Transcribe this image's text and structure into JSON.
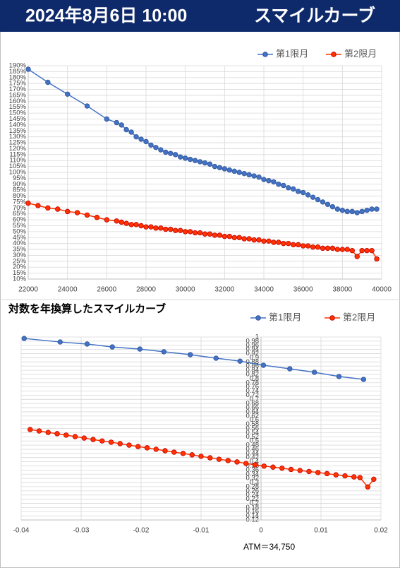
{
  "header": {
    "date": "2024年8月6日 10:00",
    "title": "スマイルカーブ"
  },
  "chart_data": [
    {
      "type": "line",
      "xlim": [
        22000,
        40000
      ],
      "xticks": [
        22000,
        24000,
        26000,
        28000,
        30000,
        32000,
        34000,
        36000,
        38000,
        40000
      ],
      "ylim": [
        10,
        190
      ],
      "yticks": [
        {
          "value": 10,
          "label": "10%"
        },
        {
          "value": 15,
          "label": "15%"
        },
        {
          "value": 20,
          "label": "20%"
        },
        {
          "value": 25,
          "label": "25%"
        },
        {
          "value": 30,
          "label": "30%"
        },
        {
          "value": 35,
          "label": "35%"
        },
        {
          "value": 40,
          "label": "40%"
        },
        {
          "value": 45,
          "label": "45%"
        },
        {
          "value": 50,
          "label": "50%"
        },
        {
          "value": 55,
          "label": "55%"
        },
        {
          "value": 60,
          "label": "60%"
        },
        {
          "value": 65,
          "label": "65%"
        },
        {
          "value": 70,
          "label": "70%"
        },
        {
          "value": 75,
          "label": "75%"
        },
        {
          "value": 80,
          "label": "80%"
        },
        {
          "value": 85,
          "label": "85%"
        },
        {
          "value": 90,
          "label": "90%"
        },
        {
          "value": 95,
          "label": "95%"
        },
        {
          "value": 100,
          "label": "100%"
        },
        {
          "value": 105,
          "label": "105%"
        },
        {
          "value": 110,
          "label": "110%"
        },
        {
          "value": 115,
          "label": "115%"
        },
        {
          "value": 120,
          "label": "120%"
        },
        {
          "value": 125,
          "label": "125%"
        },
        {
          "value": 130,
          "label": "130%"
        },
        {
          "value": 135,
          "label": "135%"
        },
        {
          "value": 140,
          "label": "140%"
        },
        {
          "value": 145,
          "label": "145%"
        },
        {
          "value": 150,
          "label": "150%"
        },
        {
          "value": 155,
          "label": "155%"
        },
        {
          "value": 160,
          "label": "160%"
        },
        {
          "value": 165,
          "label": "165%"
        },
        {
          "value": 170,
          "label": "170%"
        },
        {
          "value": 175,
          "label": "175%"
        },
        {
          "value": 180,
          "label": "180%"
        },
        {
          "value": 185,
          "label": "185%"
        },
        {
          "value": 190,
          "label": "190%"
        }
      ],
      "grid": true,
      "legend": "top-right",
      "series": [
        {
          "name": "第1限月",
          "color": "#4472c4",
          "marker_edge_color": "#2f5597",
          "x": [
            22000,
            23000,
            24000,
            25000,
            26000,
            26500,
            26750,
            27000,
            27250,
            27500,
            27750,
            28000,
            28250,
            28500,
            28750,
            29000,
            29250,
            29500,
            29750,
            30000,
            30250,
            30500,
            30750,
            31000,
            31250,
            31500,
            31750,
            32000,
            32250,
            32500,
            32750,
            33000,
            33250,
            33500,
            33750,
            34000,
            34250,
            34500,
            34750,
            35000,
            35250,
            35500,
            35750,
            36000,
            36250,
            36500,
            36750,
            37000,
            37250,
            37500,
            37750,
            38000,
            38250,
            38500,
            38750,
            39000,
            39250,
            39500,
            39750
          ],
          "values": [
            187,
            176,
            166,
            156,
            145,
            142,
            140,
            136,
            134,
            130,
            128,
            126,
            123,
            121,
            119,
            117,
            116,
            115,
            113,
            112,
            111,
            110,
            109,
            108,
            107,
            105,
            104,
            103,
            102,
            101,
            100,
            99,
            98,
            97,
            96,
            94,
            93,
            92,
            90,
            89,
            87,
            86,
            84,
            83,
            81,
            79,
            77,
            75,
            73,
            71,
            69,
            68,
            67,
            67,
            66,
            67,
            68,
            69,
            69
          ]
        },
        {
          "name": "第2限月",
          "color": "#ff3300",
          "marker_edge_color": "#c00000",
          "x": [
            22000,
            22500,
            23000,
            23500,
            24000,
            24500,
            25000,
            25500,
            26000,
            26500,
            26750,
            27000,
            27250,
            27500,
            27750,
            28000,
            28250,
            28500,
            28750,
            29000,
            29250,
            29500,
            29750,
            30000,
            30250,
            30500,
            30750,
            31000,
            31250,
            31500,
            31750,
            32000,
            32250,
            32500,
            32750,
            33000,
            33250,
            33500,
            33750,
            34000,
            34250,
            34500,
            34750,
            35000,
            35250,
            35500,
            35750,
            36000,
            36250,
            36500,
            36750,
            37000,
            37250,
            37500,
            37750,
            38000,
            38250,
            38500,
            38750,
            39000,
            39250,
            39500,
            39750
          ],
          "values": [
            74,
            72,
            70,
            69,
            67,
            66,
            64,
            62,
            60,
            59,
            58,
            57,
            56,
            56,
            55,
            54,
            54,
            53,
            53,
            52,
            52,
            51,
            51,
            50,
            50,
            49,
            49,
            48,
            48,
            47,
            47,
            46,
            46,
            45,
            45,
            44,
            44,
            43,
            43,
            42,
            42,
            41,
            41,
            40,
            40,
            39,
            39,
            38,
            38,
            37,
            37,
            36,
            36,
            36,
            35,
            35,
            35,
            34,
            29,
            34,
            34,
            34,
            27
          ]
        }
      ]
    },
    {
      "type": "line",
      "title": "対数を年換算したスマイルカーブ",
      "annotation": "ATM＝34,750",
      "xlim": [
        -0.04,
        0.02
      ],
      "xticks": [
        -0.04,
        -0.03,
        -0.02,
        -0.01,
        0,
        0.01,
        0.02
      ],
      "ylim": [
        0.12,
        1
      ],
      "yticks": [
        0.12,
        0.14,
        0.16,
        0.18,
        0.2,
        0.22,
        0.24,
        0.26,
        0.28,
        0.3,
        0.32,
        0.34,
        0.36,
        0.38,
        0.4,
        0.42,
        0.44,
        0.46,
        0.48,
        0.5,
        0.52,
        0.54,
        0.56,
        0.58,
        0.6,
        0.62,
        0.64,
        0.66,
        0.68,
        0.7,
        0.72,
        0.74,
        0.76,
        0.78,
        0.8,
        0.82,
        0.84,
        0.86,
        0.88,
        0.9,
        0.92,
        0.94,
        0.96,
        0.98,
        1
      ],
      "grid": true,
      "legend": "top-right",
      "series": [
        {
          "name": "第1限月",
          "color": "#4472c4",
          "marker_edge_color": "#2f5597",
          "x": [
            -0.0395,
            -0.0335,
            -0.029,
            -0.0248,
            -0.0202,
            -0.0162,
            -0.0118,
            -0.0075,
            -0.0035,
            0.0004,
            0.0048,
            0.0089,
            0.013,
            0.0171
          ],
          "values": [
            0.993,
            0.976,
            0.966,
            0.952,
            0.942,
            0.929,
            0.915,
            0.898,
            0.884,
            0.864,
            0.847,
            0.83,
            0.81,
            0.796
          ]
        },
        {
          "name": "第2限月",
          "color": "#ff3300",
          "marker_edge_color": "#c00000",
          "x": [
            -0.0385,
            -0.037,
            -0.0355,
            -0.034,
            -0.0325,
            -0.031,
            -0.0295,
            -0.028,
            -0.0265,
            -0.025,
            -0.0235,
            -0.022,
            -0.0205,
            -0.019,
            -0.0175,
            -0.016,
            -0.0145,
            -0.013,
            -0.0115,
            -0.01,
            -0.0085,
            -0.007,
            -0.0055,
            -0.004,
            -0.0025,
            -0.001,
            0.0005,
            0.002,
            0.0035,
            0.005,
            0.0065,
            0.008,
            0.0095,
            0.011,
            0.0125,
            0.014,
            0.0155,
            0.0165,
            0.0178,
            0.0188
          ],
          "values": [
            0.555,
            0.548,
            0.541,
            0.535,
            0.528,
            0.521,
            0.514,
            0.507,
            0.5,
            0.494,
            0.487,
            0.48,
            0.473,
            0.467,
            0.46,
            0.453,
            0.446,
            0.44,
            0.433,
            0.426,
            0.419,
            0.412,
            0.406,
            0.399,
            0.392,
            0.385,
            0.379,
            0.374,
            0.369,
            0.363,
            0.358,
            0.353,
            0.348,
            0.343,
            0.337,
            0.332,
            0.327,
            0.324,
            0.279,
            0.316
          ]
        }
      ]
    }
  ]
}
